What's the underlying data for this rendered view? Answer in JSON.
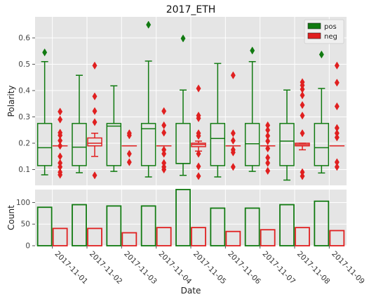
{
  "chart_data": [
    {
      "type": "box",
      "title": "2017_ETH",
      "xlabel": "",
      "ylabel": "Polarity",
      "ylim": [
        0.04,
        0.68
      ],
      "yticks": [
        0.1,
        0.2,
        0.3,
        0.4,
        0.5,
        0.6
      ],
      "grid": true,
      "legend_position": "top-right",
      "legend": [
        {
          "label": "pos",
          "color": "#117a11"
        },
        {
          "label": "neg",
          "color": "#e02020"
        }
      ],
      "categories": [
        "2017-11-01",
        "2017-11-02",
        "2017-11-03",
        "2017-11-04",
        "2017-11-05",
        "2017-11-06",
        "2017-11-07",
        "2017-11-08",
        "2017-11-09"
      ],
      "series": [
        {
          "name": "pos",
          "color": "#117a11",
          "boxes": [
            {
              "whislo": 0.08,
              "q1": 0.115,
              "med": 0.183,
              "q3": 0.275,
              "whishi": 0.51,
              "fliers": [
                0.545
              ]
            },
            {
              "whislo": 0.088,
              "q1": 0.115,
              "med": 0.185,
              "q3": 0.275,
              "whishi": 0.458,
              "fliers": []
            },
            {
              "whislo": 0.093,
              "q1": 0.115,
              "med": 0.265,
              "q3": 0.275,
              "whishi": 0.418,
              "fliers": []
            },
            {
              "whislo": 0.072,
              "q1": 0.115,
              "med": 0.255,
              "q3": 0.275,
              "whishi": 0.512,
              "fliers": [
                0.65
              ]
            },
            {
              "whislo": 0.078,
              "q1": 0.123,
              "med": 0.123,
              "q3": 0.275,
              "whishi": 0.402,
              "fliers": [
                0.598
              ]
            },
            {
              "whislo": 0.072,
              "q1": 0.115,
              "med": 0.218,
              "q3": 0.275,
              "whishi": 0.503,
              "fliers": []
            },
            {
              "whislo": 0.093,
              "q1": 0.115,
              "med": 0.198,
              "q3": 0.275,
              "whishi": 0.51,
              "fliers": [
                0.552
              ]
            },
            {
              "whislo": 0.06,
              "q1": 0.115,
              "med": 0.208,
              "q3": 0.275,
              "whishi": 0.402,
              "fliers": []
            },
            {
              "whislo": 0.087,
              "q1": 0.115,
              "med": 0.183,
              "q3": 0.275,
              "whishi": 0.408,
              "fliers": [
                0.537
              ]
            }
          ]
        },
        {
          "name": "neg",
          "color": "#e02020",
          "boxes": [
            {
              "whislo": 0.19,
              "q1": 0.19,
              "med": 0.19,
              "q3": 0.19,
              "whishi": 0.19,
              "fliers": [
                0.08,
                0.09,
                0.11,
                0.125,
                0.15,
                0.19,
                0.21,
                0.23,
                0.24,
                0.29,
                0.32
              ]
            },
            {
              "whislo": 0.15,
              "q1": 0.19,
              "med": 0.2,
              "q3": 0.22,
              "whishi": 0.238,
              "fliers": [
                0.078,
                0.28,
                0.322,
                0.378,
                0.495
              ]
            },
            {
              "whislo": 0.19,
              "q1": 0.19,
              "med": 0.19,
              "q3": 0.19,
              "whishi": 0.19,
              "fliers": [
                0.128,
                0.16,
                0.23,
                0.238
              ]
            },
            {
              "whislo": 0.19,
              "q1": 0.19,
              "med": 0.19,
              "q3": 0.19,
              "whishi": 0.19,
              "fliers": [
                0.1,
                0.11,
                0.125,
                0.16,
                0.175,
                0.24,
                0.268,
                0.322
              ]
            },
            {
              "whislo": 0.17,
              "q1": 0.187,
              "med": 0.195,
              "q3": 0.2,
              "whishi": 0.208,
              "fliers": [
                0.075,
                0.112,
                0.16,
                0.228,
                0.238,
                0.295,
                0.305,
                0.408
              ]
            },
            {
              "whislo": 0.19,
              "q1": 0.19,
              "med": 0.19,
              "q3": 0.19,
              "whishi": 0.19,
              "fliers": [
                0.11,
                0.165,
                0.175,
                0.21,
                0.238,
                0.458
              ]
            },
            {
              "whislo": 0.19,
              "q1": 0.19,
              "med": 0.19,
              "q3": 0.19,
              "whishi": 0.19,
              "fliers": [
                0.095,
                0.125,
                0.145,
                0.18,
                0.208,
                0.228,
                0.25,
                0.268
              ]
            },
            {
              "whislo": 0.175,
              "q1": 0.19,
              "med": 0.195,
              "q3": 0.2,
              "whishi": 0.2,
              "fliers": [
                0.075,
                0.09,
                0.238,
                0.305,
                0.345,
                0.382,
                0.405,
                0.42,
                0.432
              ]
            },
            {
              "whislo": 0.19,
              "q1": 0.19,
              "med": 0.19,
              "q3": 0.19,
              "whishi": 0.19,
              "fliers": [
                0.11,
                0.128,
                0.222,
                0.238,
                0.258,
                0.34,
                0.43,
                0.495
              ]
            }
          ]
        }
      ]
    },
    {
      "type": "bar",
      "title": "",
      "xlabel": "Date",
      "ylabel": "Count",
      "ylim": [
        0,
        130
      ],
      "yticks": [
        0,
        50,
        100
      ],
      "grid": true,
      "categories": [
        "2017-11-01",
        "2017-11-02",
        "2017-11-03",
        "2017-11-04",
        "2017-11-05",
        "2017-11-06",
        "2017-11-07",
        "2017-11-08",
        "2017-11-09"
      ],
      "series": [
        {
          "name": "pos",
          "color": "#117a11",
          "values": [
            89,
            95,
            92,
            92,
            130,
            87,
            87,
            95,
            103
          ]
        },
        {
          "name": "neg",
          "color": "#e02020",
          "values": [
            40,
            40,
            30,
            42,
            42,
            33,
            37,
            42,
            35
          ]
        }
      ]
    }
  ]
}
